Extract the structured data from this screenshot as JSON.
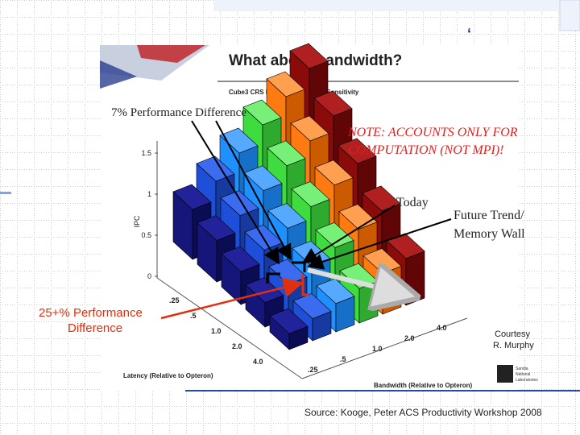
{
  "slide": {
    "title": "What about bandwidth?",
    "figure_title": "Cube3 CRS Latency/Bandwidth Sensitivity",
    "annotation_7": "7% Performance Difference",
    "note_line1": "NOTE: ACCOUNTS ONLY FOR",
    "note_line2": "COMPUTATION (NOT MPI)!",
    "today": "Today",
    "future_line1": "Future Trend/",
    "future_line2": "Memory Wall",
    "annotation_25_line1": "25+% Performance",
    "annotation_25_line2": "Difference",
    "courtesy_line1": "Courtesy",
    "courtesy_line2": "R. Murphy",
    "ipc_label": "IPC",
    "ipc_ticks": [
      "1.5",
      "1",
      "0.5",
      "0"
    ],
    "latency_ticks": [
      ".25",
      ".5",
      "1.0",
      "2.0",
      "4.0"
    ],
    "bandwidth_ticks": [
      "4.0",
      "2.0",
      "1.0",
      ".5",
      ".25"
    ],
    "latency_label": "Latency (Relative to Opteron)",
    "bandwidth_label": "Bandwidth (Relative to Opteron)",
    "logo_line1": "Sandia",
    "logo_line2": "National",
    "logo_line3": "Laboratories",
    "source": "Source: Kooge, Peter ACS Productivity Workshop 2008"
  }
}
